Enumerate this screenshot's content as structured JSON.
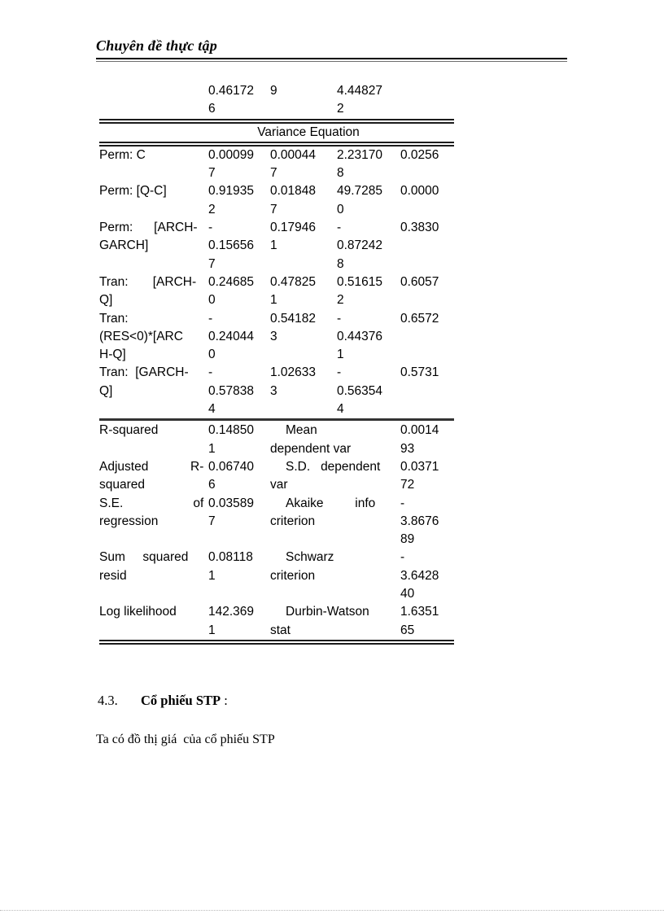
{
  "header": {
    "title": "Chuyên đề thực tập"
  },
  "table": {
    "section_title": "Variance Equation",
    "continuation_row": {
      "label": "",
      "coef": "0.46172\n6",
      "std_error": "9",
      "z_stat": "4.44827\n2",
      "prob": ""
    },
    "variance_rows": [
      {
        "label": "Perm: C",
        "coef": "0.00099\n7",
        "std_error": "0.00044\n7",
        "z_stat": "2.23170\n8",
        "prob": "0.0256"
      },
      {
        "label": "Perm: [Q-C]",
        "coef": "0.91935\n2",
        "std_error": "0.01848\n7",
        "z_stat": "49.7285\n0",
        "prob": "0.0000"
      },
      {
        "label": "Perm:      [ARCH-\nGARCH]",
        "coef": "-\n0.15656\n7",
        "std_error": "0.17946\n1",
        "z_stat": "-\n0.87242\n8",
        "prob": "0.3830"
      },
      {
        "label": "Tran:       [ARCH-\nQ]",
        "coef": "0.24685\n0",
        "std_error": "0.47825\n1",
        "z_stat": "0.51615\n2",
        "prob": "0.6057"
      },
      {
        "label": "Tran:\n(RES<0)*[ARC\nH-Q]",
        "coef": "-\n0.24044\n0",
        "std_error": "0.54182\n3",
        "z_stat": "-\n0.44376\n1",
        "prob": "0.6572"
      },
      {
        "label": "Tran:  [GARCH-\nQ]",
        "coef": "-\n0.57838\n4",
        "std_error": "1.02633\n3",
        "z_stat": "-\n0.56354\n4",
        "prob": "0.5731"
      }
    ],
    "stats_rows": [
      {
        "label1": "R-squared",
        "value1": "0.14850\n1",
        "label2": "Mean\ndependent var",
        "value2": "0.0014\n93"
      },
      {
        "label1": "Adjusted            R-\nsquared",
        "value1": "0.06740\n6",
        "label2": "S.D.   dependent\nvar",
        "value2": "0.0371\n72"
      },
      {
        "label1": "S.E.                    of\nregression",
        "value1": "0.03589\n7",
        "label2": "Akaike         info\ncriterion",
        "value2": "-\n3.8676\n89"
      },
      {
        "label1": "Sum     squared\nresid",
        "value1": "0.08118\n1",
        "label2": "Schwarz\ncriterion",
        "value2": "-\n3.6428\n40"
      },
      {
        "label1": "Log likelihood",
        "value1": "142.369\n1",
        "label2": "Durbin-Watson\nstat",
        "value2": "1.6351\n65"
      }
    ]
  },
  "section": {
    "number": "4.3.",
    "title": "Cổ phiếu STP",
    "suffix": " :",
    "body": "Ta có đồ thị giá  của cổ phiếu STP"
  }
}
